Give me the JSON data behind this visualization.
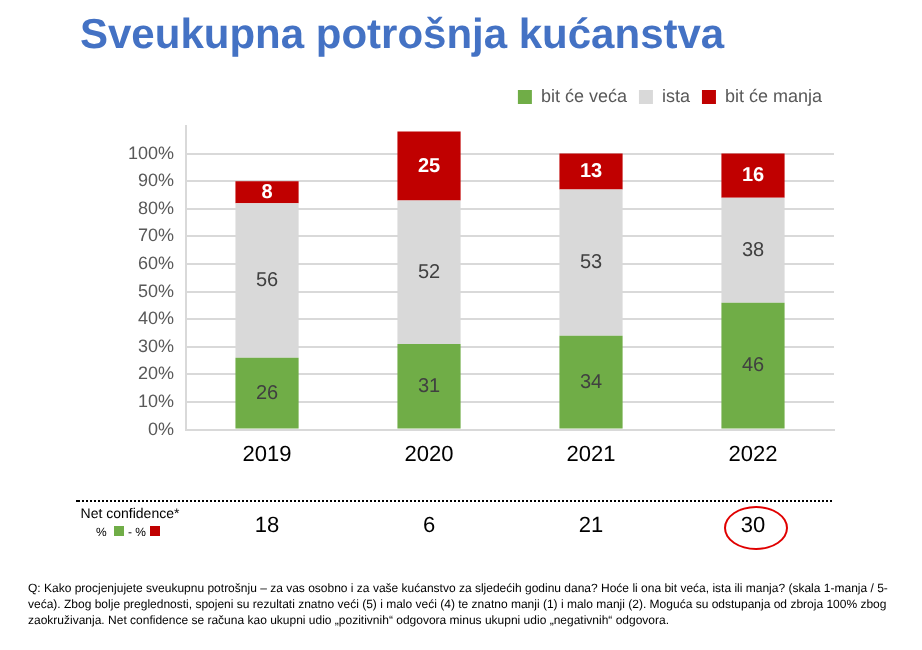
{
  "chart_data": {
    "type": "bar",
    "title": "Sveukupna potrošnja kućanstva",
    "categories": [
      "2019",
      "2020",
      "2021",
      "2022"
    ],
    "stacked": true,
    "series": [
      {
        "name": "bit će veća",
        "color": "#70ad47",
        "values": [
          26,
          31,
          34,
          46
        ]
      },
      {
        "name": "ista",
        "color": "#d9d9d9",
        "values": [
          56,
          52,
          53,
          38
        ]
      },
      {
        "name": "bit će manja",
        "color": "#c00000",
        "values": [
          8,
          25,
          13,
          16
        ]
      }
    ],
    "ylim": [
      0,
      110
    ],
    "yticks": [
      {
        "value": 0,
        "label": "0%"
      },
      {
        "value": 10,
        "label": "10%"
      },
      {
        "value": 20,
        "label": "20%"
      },
      {
        "value": 30,
        "label": "30%"
      },
      {
        "value": 40,
        "label": "40%"
      },
      {
        "value": 50,
        "label": "50%"
      },
      {
        "value": 60,
        "label": "60%"
      },
      {
        "value": 70,
        "label": "70%"
      },
      {
        "value": 80,
        "label": "80%"
      },
      {
        "value": 90,
        "label": "90%"
      },
      {
        "value": 100,
        "label": "100%"
      }
    ],
    "grid": "y",
    "legend": "top right",
    "data_labels": true,
    "annotations": [
      "Net confidence*",
      "% - %",
      "18",
      "6",
      "21",
      "30",
      "Q: Kako procjenjujete sveukupnu potrošnju – za vas osobno i za vaše kućanstvo za sljedećih godinu dana? Hoće li ona bit veća, ista ili manja? (skala 1-manja / 5-veća). Zbog bolje preglednosti, spojeni su rezultati znatno veći (5) i malo veći (4) te znatno manji (1) i malo manji (2). Moguća su odstupanja od zbroja 100% zbog zaokruživanja. Net confidence se računa kao ukupni udio „pozitivnih“ odgovora minus ukupni udio „negativnih“ odgovora."
    ]
  }
}
